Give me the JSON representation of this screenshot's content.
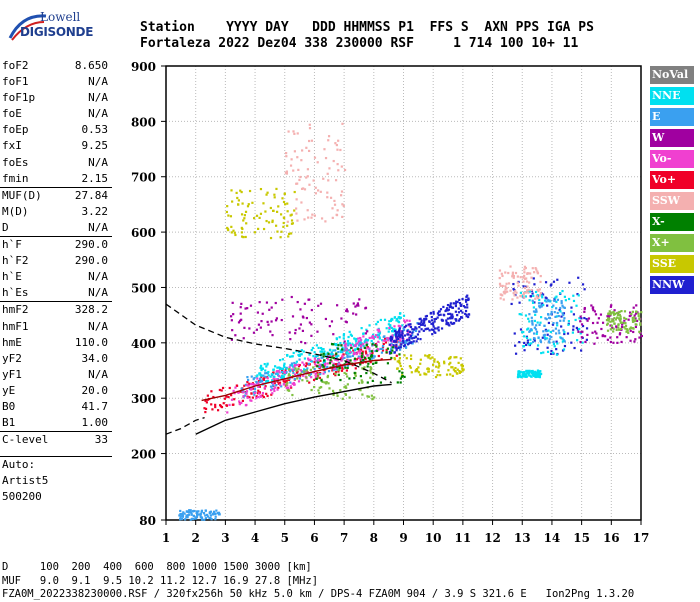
{
  "logo": {
    "line1": "Lowell",
    "line2": "DIGISONDE"
  },
  "header": {
    "line1": "Station    YYYY DAY   DDD HHMMSS P1  FFS S  AXN PPS IGA PS",
    "line2": "Fortaleza 2022 Dez04 338 230000 RSF     1 714 100 10+ 11"
  },
  "params": [
    {
      "label": "foF2",
      "value": "8.650",
      "sep": false
    },
    {
      "label": "foF1",
      "value": "N/A",
      "sep": false
    },
    {
      "label": "foF1p",
      "value": "N/A",
      "sep": false
    },
    {
      "label": "foE",
      "value": "N/A",
      "sep": false
    },
    {
      "label": "foEp",
      "value": "0.53",
      "sep": false
    },
    {
      "label": "fxI",
      "value": "9.25",
      "sep": false
    },
    {
      "label": "foEs",
      "value": "N/A",
      "sep": false
    },
    {
      "label": "fmin",
      "value": "2.15",
      "sep": false
    },
    {
      "label": "MUF(D)",
      "value": "27.84",
      "sep": true
    },
    {
      "label": "M(D)",
      "value": "3.22",
      "sep": false
    },
    {
      "label": "D",
      "value": "N/A",
      "sep": false
    },
    {
      "label": "h`F",
      "value": "290.0",
      "sep": true
    },
    {
      "label": "h`F2",
      "value": "290.0",
      "sep": false
    },
    {
      "label": "h`E",
      "value": "N/A",
      "sep": false
    },
    {
      "label": "h`Es",
      "value": "N/A",
      "sep": false
    },
    {
      "label": "hmF2",
      "value": "328.2",
      "sep": true
    },
    {
      "label": "hmF1",
      "value": "N/A",
      "sep": false
    },
    {
      "label": "hmE",
      "value": "110.0",
      "sep": false
    },
    {
      "label": "yF2",
      "value": "34.0",
      "sep": false
    },
    {
      "label": "yF1",
      "value": "N/A",
      "sep": false
    },
    {
      "label": "yE",
      "value": "20.0",
      "sep": false
    },
    {
      "label": "B0",
      "value": "41.7",
      "sep": false
    },
    {
      "label": "B1",
      "value": "1.00",
      "sep": false
    },
    {
      "label": "C-level",
      "value": "33",
      "sep": true
    }
  ],
  "autoscale": {
    "line1": "Auto:",
    "line2": "Artist5",
    "line3": "500200"
  },
  "legend": [
    {
      "label": "NoVal",
      "color": "#808080"
    },
    {
      "label": "NNE",
      "color": "#00e0f0"
    },
    {
      "label": "E",
      "color": "#3aa0f0"
    },
    {
      "label": "W",
      "color": "#a000a0"
    },
    {
      "label": "Vo-",
      "color": "#f040d0"
    },
    {
      "label": "Vo+",
      "color": "#f00028"
    },
    {
      "label": "SSW",
      "color": "#f4b0b0"
    },
    {
      "label": "X-",
      "color": "#008000"
    },
    {
      "label": "X+",
      "color": "#80c040"
    },
    {
      "label": "SSE",
      "color": "#c8c800"
    },
    {
      "label": "NNW",
      "color": "#2020d0"
    }
  ],
  "footer": {
    "d_row": "D     100  200  400  600  800 1000 1500 3000 [km]",
    "muf_row": "MUF   9.0  9.1  9.5 10.2 11.2 12.7 16.9 27.8 [MHz]",
    "info": "FZA0M_2022338230000.RSF / 320fx256h 50 kHz 5.0 km / DPS-4 FZA0M 904 / 3.9 S 321.6 E   Ion2Png 1.3.20"
  },
  "chart_data": {
    "type": "scatter",
    "xlim": [
      1,
      17
    ],
    "ylim": [
      80,
      900
    ],
    "xticks": [
      1,
      2,
      3,
      4,
      5,
      6,
      7,
      8,
      9,
      10,
      11,
      12,
      13,
      14,
      15,
      16,
      17
    ],
    "yticks": [
      80,
      200,
      300,
      400,
      500,
      600,
      700,
      800,
      900
    ],
    "grid": true,
    "legend_position": "right",
    "traces": [
      {
        "name": "h-trace",
        "color": "#000000",
        "dash": false,
        "x": [
          2.0,
          3.0,
          4.0,
          5.0,
          6.0,
          7.0,
          8.0,
          8.6
        ],
        "y": [
          235,
          260,
          275,
          290,
          302,
          312,
          322,
          325
        ]
      },
      {
        "name": "profile",
        "color": "#000000",
        "dash": true,
        "x": [
          1.0,
          2.0,
          3.0,
          4.0,
          5.0,
          6.0,
          7.0,
          8.0,
          8.6
        ],
        "y": [
          470,
          432,
          410,
          398,
          390,
          380,
          368,
          345,
          328
        ]
      },
      {
        "name": "profile-low",
        "color": "#000000",
        "dash": true,
        "x": [
          1.0,
          1.5,
          2.0,
          2.3
        ],
        "y": [
          235,
          245,
          260,
          265
        ]
      },
      {
        "name": "o-trace",
        "color": "#a00000",
        "dash": false,
        "x": [
          2.2,
          3.0,
          4.0,
          5.0,
          6.0,
          7.0,
          8.0,
          8.6
        ],
        "y": [
          296,
          305,
          322,
          335,
          348,
          360,
          368,
          370
        ]
      }
    ],
    "clusters": [
      {
        "color": "#f00028",
        "x": [
          2.2,
          8.9
        ],
        "y": [
          290,
          400
        ],
        "trend": true
      },
      {
        "color": "#3aa0f0",
        "x": [
          3.5,
          9.5
        ],
        "y": [
          320,
          420
        ],
        "trend": true
      },
      {
        "color": "#00e0f0",
        "x": [
          4.0,
          9.0
        ],
        "y": [
          340,
          440
        ],
        "trend": true
      },
      {
        "color": "#f040d0",
        "x": [
          3.0,
          9.2
        ],
        "y": [
          295,
          430
        ],
        "trend": true
      },
      {
        "color": "#a000a0",
        "x": [
          3.1,
          7.8
        ],
        "y": [
          400,
          485
        ],
        "trend": false
      },
      {
        "color": "#2020d0",
        "x": [
          8.5,
          11.2
        ],
        "y": [
          400,
          470
        ],
        "trend": true
      },
      {
        "color": "#c8c800",
        "x": [
          8.6,
          11.0
        ],
        "y": [
          340,
          380
        ],
        "trend": false
      },
      {
        "color": "#80c040",
        "x": [
          5.0,
          8.0
        ],
        "y": [
          300,
          360
        ],
        "trend": false
      },
      {
        "color": "#008000",
        "x": [
          6.0,
          9.0
        ],
        "y": [
          330,
          400
        ],
        "trend": false
      },
      {
        "color": "#2020d0",
        "x": [
          12.6,
          15.2
        ],
        "y": [
          380,
          520
        ],
        "trend": false
      },
      {
        "color": "#00e0f0",
        "x": [
          12.8,
          15.0
        ],
        "y": [
          380,
          500
        ],
        "trend": false
      },
      {
        "color": "#3aa0f0",
        "x": [
          13.2,
          14.4
        ],
        "y": [
          400,
          480
        ],
        "trend": false
      },
      {
        "color": "#a000a0",
        "x": [
          14.8,
          17.0
        ],
        "y": [
          400,
          470
        ],
        "trend": false
      },
      {
        "color": "#80c040",
        "x": [
          15.8,
          17.0
        ],
        "y": [
          420,
          460
        ],
        "trend": false
      },
      {
        "color": "#f4b0b0",
        "x": [
          12.2,
          13.6
        ],
        "y": [
          480,
          540
        ],
        "trend": false
      },
      {
        "color": "#c8c800",
        "x": [
          3.0,
          5.3
        ],
        "y": [
          590,
          680
        ],
        "trend": false
      },
      {
        "color": "#f4b0b0",
        "x": [
          5.0,
          7.0
        ],
        "y": [
          620,
          800
        ],
        "trend": false
      },
      {
        "color": "#3aa0f0",
        "x": [
          1.4,
          2.8
        ],
        "y": [
          82,
          100
        ],
        "trend": false
      },
      {
        "color": "#00e0f0",
        "x": [
          12.8,
          13.6
        ],
        "y": [
          340,
          352
        ],
        "trend": false
      }
    ]
  }
}
